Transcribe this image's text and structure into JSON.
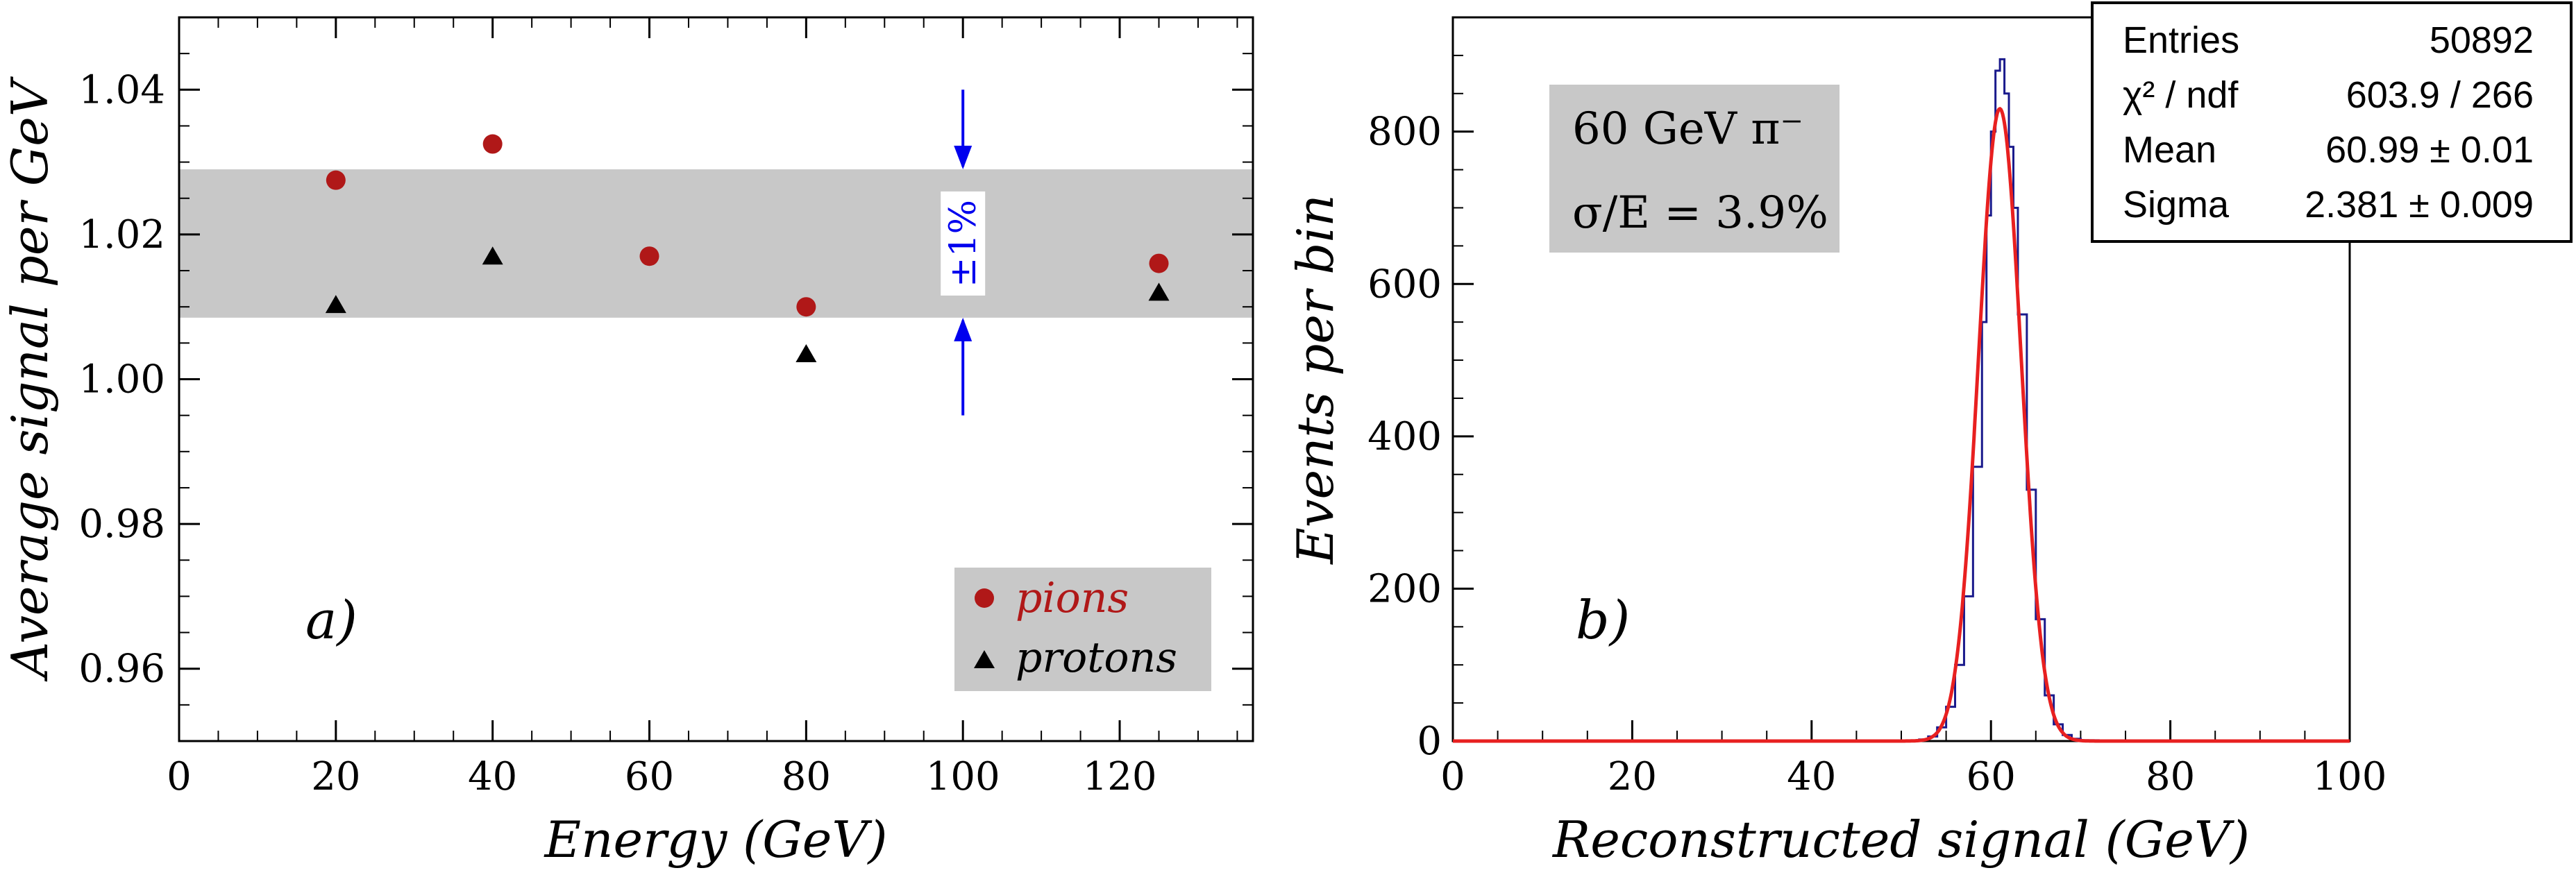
{
  "chart_data": [
    {
      "type": "scatter",
      "panel_label": "a)",
      "xlabel": "Energy (GeV)",
      "ylabel": "Average signal per GeV",
      "xlim": [
        0,
        137
      ],
      "ylim": [
        0.95,
        1.05
      ],
      "x_ticks": [
        0,
        20,
        40,
        60,
        80,
        100,
        120
      ],
      "y_ticks": [
        0.96,
        0.98,
        1.0,
        1.02,
        1.04
      ],
      "x_tick_labels": [
        "0",
        "20",
        "40",
        "60",
        "80",
        "100",
        "120"
      ],
      "y_tick_labels": [
        "0.96",
        "0.98",
        "1.00",
        "1.02",
        "1.04"
      ],
      "band": {
        "from": 1.0085,
        "to": 1.029,
        "color": "#c8c8c8"
      },
      "annotation": {
        "text": "±1%",
        "x": 100,
        "arrow_top": 1.04,
        "arrow_bottom": 0.995,
        "color": "#0000ee"
      },
      "series": [
        {
          "name": "pions",
          "marker": "circle",
          "color": "#b01818",
          "x": [
            20,
            40,
            60,
            80,
            125
          ],
          "y": [
            1.0275,
            1.0325,
            1.017,
            1.01,
            1.016
          ]
        },
        {
          "name": "protons",
          "marker": "triangle",
          "color": "#000000",
          "x": [
            20,
            40,
            80,
            125
          ],
          "y": [
            1.0103,
            1.017,
            1.0035,
            1.012
          ]
        }
      ],
      "legend_placement": "bottom-right"
    },
    {
      "type": "line",
      "panel_label": "b)",
      "xlabel": "Reconstructed signal (GeV)",
      "ylabel": "Events per bin",
      "xlim": [
        0,
        100
      ],
      "ylim": [
        0,
        950
      ],
      "x_ticks": [
        0,
        20,
        40,
        60,
        80,
        100
      ],
      "y_ticks": [
        0,
        200,
        400,
        600,
        800
      ],
      "x_tick_labels": [
        "0",
        "20",
        "40",
        "60",
        "80",
        "100"
      ],
      "y_tick_labels": [
        "0",
        "200",
        "400",
        "600",
        "800"
      ],
      "info_box": {
        "line1": "60 GeV π⁻",
        "line2": "σ/E = 3.9%"
      },
      "stats_box": [
        {
          "label": "Entries",
          "value": "50892"
        },
        {
          "label": "χ² / ndf",
          "value": "603.9 / 266"
        },
        {
          "label": "Mean",
          "value": "60.99 ± 0.01"
        },
        {
          "label": "Sigma",
          "value": "2.381 ± 0.009"
        }
      ],
      "series": [
        {
          "style": "histogram",
          "color": "#1a1a8c",
          "x": [
            50,
            52,
            53,
            54,
            55,
            56,
            57,
            58,
            59,
            59.5,
            60,
            60.5,
            61,
            61.5,
            62,
            62.5,
            63,
            64,
            65,
            66,
            67,
            68,
            69,
            70,
            72
          ],
          "y": [
            0,
            2,
            6,
            18,
            45,
            100,
            190,
            360,
            550,
            690,
            800,
            880,
            895,
            850,
            780,
            700,
            560,
            330,
            160,
            60,
            22,
            8,
            3,
            1,
            0
          ]
        },
        {
          "style": "fit",
          "color": "#e82020",
          "function": "gaussian",
          "mean": 60.99,
          "sigma": 2.381,
          "amplitude": 830
        }
      ]
    }
  ]
}
